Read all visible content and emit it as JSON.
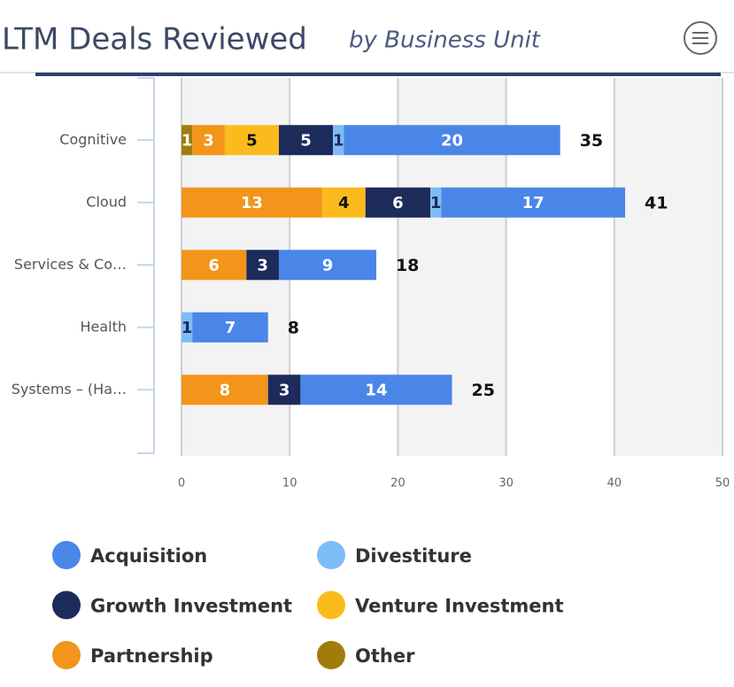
{
  "chart_data": {
    "type": "stacked-bar-horizontal",
    "title": "LTM Deals Reviewed",
    "subtitle": "by Business Unit",
    "categories": [
      "Cognitive",
      "Cloud",
      "Services & Co…",
      "Health",
      "Systems – (Ha…"
    ],
    "series": [
      {
        "name": "Acquisition",
        "color": "#4a86e8",
        "values": [
          20,
          17,
          9,
          7,
          14
        ]
      },
      {
        "name": "Divestiture",
        "color": "#7dbcf6",
        "values": [
          1,
          1,
          null,
          1,
          null
        ]
      },
      {
        "name": "Growth Investment",
        "color": "#1d2b5a",
        "values": [
          5,
          6,
          3,
          null,
          3
        ]
      },
      {
        "name": "Venture Investment",
        "color": "#fbbb1c",
        "values": [
          5,
          4,
          null,
          null,
          null
        ]
      },
      {
        "name": "Partnership",
        "color": "#f3941b",
        "values": [
          3,
          13,
          6,
          null,
          8
        ]
      },
      {
        "name": "Other",
        "color": "#a17c0b",
        "values": [
          1,
          null,
          null,
          null,
          null
        ]
      }
    ],
    "totals": [
      35,
      41,
      18,
      8,
      25
    ],
    "xlim": [
      0,
      50
    ],
    "xticks": [
      0,
      10,
      20,
      30,
      40,
      50
    ],
    "grid": true
  }
}
